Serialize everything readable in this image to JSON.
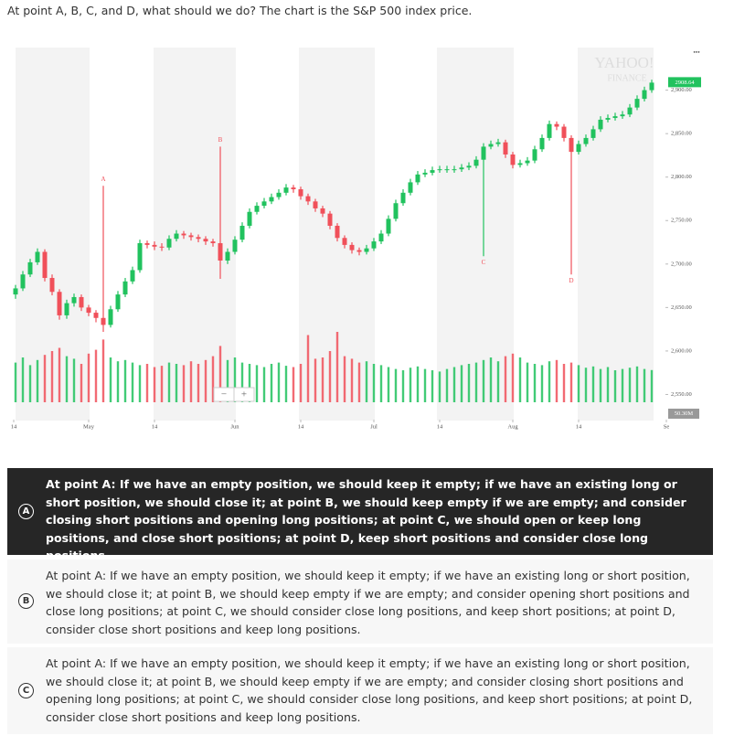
{
  "question": "At point A, B, C, and D, what should we do? The chart is the S&P 500 index price.",
  "chart_data": {
    "type": "candlestick",
    "watermark": [
      "YAHOO!",
      "FINANCE"
    ],
    "up_color": "#21c25e",
    "down_color": "#f0505a",
    "annotation_color": "#f0505a",
    "x": [
      0,
      1,
      2,
      3,
      4,
      5,
      6,
      7,
      8,
      9,
      10,
      11,
      12,
      13,
      14,
      15,
      16,
      17,
      18,
      19,
      20,
      21,
      22,
      23,
      24,
      25,
      26,
      27,
      28,
      29,
      30,
      31,
      32,
      33,
      34,
      35,
      36,
      37,
      38,
      39,
      40,
      41,
      42,
      43,
      44,
      45,
      46,
      47,
      48,
      49,
      50,
      51,
      52,
      53,
      54,
      55,
      56,
      57,
      58,
      59,
      60,
      61,
      62,
      63,
      64,
      65,
      66,
      67,
      68,
      69,
      70,
      71,
      72,
      73,
      74,
      75,
      76,
      77,
      78,
      79,
      80,
      81,
      82,
      83,
      84,
      85,
      86,
      87
    ],
    "open": [
      2665,
      2672,
      2688,
      2702,
      2714,
      2684,
      2668,
      2641,
      2655,
      2662,
      2650,
      2644,
      2638,
      2630,
      2648,
      2665,
      2680,
      2693,
      2724,
      2722,
      2720,
      2719,
      2729,
      2735,
      2733,
      2731,
      2729,
      2726,
      2724,
      2704,
      2714,
      2728,
      2744,
      2760,
      2767,
      2772,
      2777,
      2782,
      2788,
      2786,
      2778,
      2772,
      2764,
      2758,
      2744,
      2730,
      2722,
      2716,
      2714,
      2718,
      2726,
      2735,
      2752,
      2770,
      2782,
      2794,
      2803,
      2805,
      2808,
      2809,
      2809,
      2809,
      2811,
      2813,
      2820,
      2835,
      2838,
      2840,
      2826,
      2814,
      2816,
      2819,
      2832,
      2845,
      2861,
      2858,
      2845,
      2829,
      2838,
      2845,
      2855,
      2866,
      2868,
      2870,
      2872,
      2880,
      2890,
      2900
    ],
    "high": [
      2676,
      2692,
      2706,
      2718,
      2717,
      2688,
      2671,
      2659,
      2666,
      2665,
      2653,
      2647,
      2790,
      2652,
      2669,
      2684,
      2697,
      2728,
      2727,
      2726,
      2724,
      2733,
      2739,
      2738,
      2736,
      2734,
      2732,
      2729,
      2835,
      2718,
      2732,
      2748,
      2764,
      2771,
      2776,
      2781,
      2786,
      2792,
      2791,
      2789,
      2781,
      2775,
      2767,
      2761,
      2747,
      2733,
      2725,
      2719,
      2722,
      2730,
      2739,
      2756,
      2774,
      2786,
      2798,
      2807,
      2809,
      2812,
      2813,
      2813,
      2813,
      2815,
      2817,
      2824,
      2839,
      2842,
      2844,
      2843,
      2829,
      2820,
      2823,
      2836,
      2849,
      2865,
      2864,
      2861,
      2848,
      2842,
      2849,
      2859,
      2870,
      2872,
      2874,
      2876,
      2884,
      2894,
      2904,
      2912
    ],
    "low": [
      2660,
      2669,
      2685,
      2699,
      2680,
      2664,
      2636,
      2637,
      2651,
      2646,
      2640,
      2633,
      2622,
      2627,
      2645,
      2662,
      2677,
      2690,
      2718,
      2716,
      2715,
      2716,
      2726,
      2729,
      2727,
      2725,
      2722,
      2720,
      2683,
      2700,
      2711,
      2725,
      2741,
      2757,
      2764,
      2769,
      2774,
      2779,
      2782,
      2774,
      2768,
      2760,
      2754,
      2740,
      2726,
      2718,
      2712,
      2710,
      2711,
      2715,
      2723,
      2732,
      2749,
      2767,
      2779,
      2791,
      2800,
      2802,
      2805,
      2805,
      2805,
      2806,
      2808,
      2810,
      2709,
      2832,
      2835,
      2822,
      2810,
      2811,
      2813,
      2816,
      2829,
      2842,
      2854,
      2841,
      2688,
      2826,
      2835,
      2842,
      2852,
      2863,
      2865,
      2867,
      2869,
      2877,
      2887,
      2897
    ],
    "close": [
      2672,
      2688,
      2702,
      2714,
      2684,
      2668,
      2641,
      2655,
      2662,
      2650,
      2644,
      2638,
      2630,
      2648,
      2665,
      2680,
      2693,
      2724,
      2722,
      2720,
      2719,
      2729,
      2735,
      2733,
      2731,
      2729,
      2726,
      2724,
      2704,
      2714,
      2728,
      2744,
      2760,
      2767,
      2772,
      2777,
      2782,
      2788,
      2786,
      2778,
      2772,
      2764,
      2758,
      2744,
      2730,
      2722,
      2716,
      2714,
      2718,
      2726,
      2735,
      2752,
      2770,
      2782,
      2794,
      2803,
      2805,
      2808,
      2809,
      2809,
      2809,
      2811,
      2813,
      2820,
      2835,
      2838,
      2840,
      2826,
      2814,
      2816,
      2819,
      2832,
      2845,
      2861,
      2858,
      2845,
      2829,
      2838,
      2845,
      2855,
      2866,
      2868,
      2870,
      2872,
      2880,
      2890,
      2900,
      2908.64
    ],
    "volume": [
      62,
      70,
      58,
      66,
      74,
      80,
      85,
      72,
      68,
      60,
      76,
      82,
      98,
      70,
      64,
      66,
      62,
      58,
      60,
      55,
      57,
      62,
      60,
      58,
      64,
      60,
      66,
      72,
      88,
      66,
      70,
      62,
      60,
      58,
      55,
      60,
      62,
      57,
      55,
      60,
      105,
      68,
      70,
      80,
      110,
      72,
      68,
      62,
      64,
      60,
      58,
      55,
      52,
      50,
      54,
      56,
      52,
      50,
      48,
      52,
      55,
      58,
      60,
      62,
      66,
      70,
      64,
      72,
      76,
      70,
      62,
      60,
      58,
      64,
      66,
      60,
      62,
      58,
      54,
      56,
      52,
      55,
      50,
      52,
      54,
      56,
      52,
      50.3
    ],
    "last_volume_label": "50.30M",
    "volume_lim": [
      0,
      200
    ],
    "ylim": [
      2520,
      2949
    ],
    "yticks": [
      {
        "value": 2550,
        "label": "2,550.00"
      },
      {
        "value": 2600,
        "label": "2,600.00"
      },
      {
        "value": 2650,
        "label": "2,650.00"
      },
      {
        "value": 2700,
        "label": "2,700.00"
      },
      {
        "value": 2750,
        "label": "2,750.00"
      },
      {
        "value": 2800,
        "label": "2,800.00"
      },
      {
        "value": 2850,
        "label": "2,850.00"
      },
      {
        "value": 2900,
        "label": "2,900.00"
      }
    ],
    "xlim": [
      -0.5,
      89.5
    ],
    "xticks": [
      {
        "value": -0.25,
        "label": "14"
      },
      {
        "value": 10,
        "label": "May"
      },
      {
        "value": 19,
        "label": "14"
      },
      {
        "value": 30,
        "label": "Jun"
      },
      {
        "value": 39,
        "label": "14"
      },
      {
        "value": 49,
        "label": "Jul"
      },
      {
        "value": 58,
        "label": "14"
      },
      {
        "value": 68,
        "label": "Aug"
      },
      {
        "value": 77,
        "label": "14"
      },
      {
        "value": 89,
        "label": "Se"
      }
    ],
    "annotations": [
      {
        "text": "A",
        "x": 12
      },
      {
        "text": "B",
        "x": 28
      },
      {
        "text": "C",
        "x": 64
      },
      {
        "text": "D",
        "x": 76
      }
    ],
    "zoom_controls": [
      "−",
      "+"
    ],
    "menu": "•••"
  },
  "selected": "A",
  "options": [
    {
      "letter": "A",
      "text": "At point A: If we have an empty position, we should keep it empty; if we have an existing long or short position, we should close it; at point B, we should keep empty if we are empty; and consider closing short positions and opening long positions; at point C, we should open or keep long positions, and close short positions; at point D, keep short positions and consider close long positions."
    },
    {
      "letter": "B",
      "text": "At point A: If we have an empty position, we should keep it empty; if we have an existing long or short position, we should close it; at point B, we should keep empty if we are empty; and consider opening short positions and close long positions; at point C, we should consider close long positions, and keep short positions; at point D, consider close short positions and keep long positions."
    },
    {
      "letter": "C",
      "text": "At point A: If we have an empty position, we should keep it empty; if we have an existing long or short position, we should close it; at point B, we should keep empty if we are empty; and consider closing short positions and opening long positions; at point C, we should consider close long positions, and keep short positions; at point D, consider close short positions and keep long positions."
    }
  ]
}
